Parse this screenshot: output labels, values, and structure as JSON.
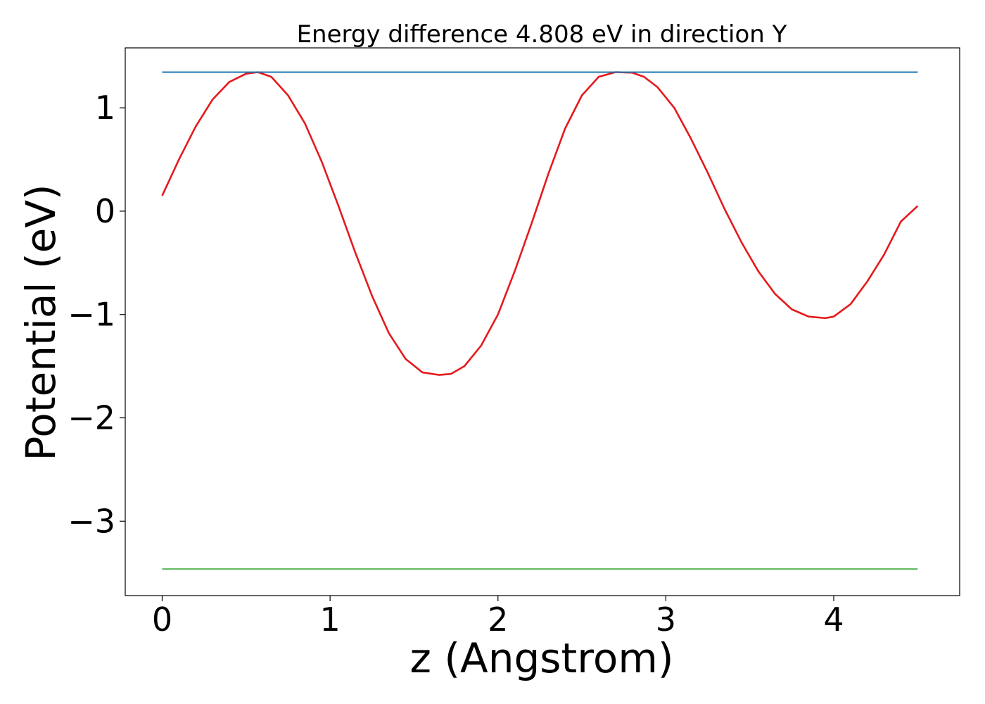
{
  "chart_data": {
    "type": "line",
    "title": "Energy difference 4.808 eV in direction Y",
    "xlabel": "z (Angstrom)",
    "ylabel": "Potential (eV)",
    "xlim": [
      -0.22,
      4.75
    ],
    "ylim": [
      -3.72,
      1.58
    ],
    "xticks": [
      0,
      1,
      2,
      3,
      4
    ],
    "xtick_labels": [
      "0",
      "1",
      "2",
      "3",
      "4"
    ],
    "yticks": [
      1,
      0,
      -1,
      -2,
      -3
    ],
    "ytick_labels": [
      "1",
      "0",
      "−1",
      "−2",
      "−3"
    ],
    "grid": false,
    "series": [
      {
        "color": "#e41a1c",
        "x": [
          0.0,
          0.1,
          0.2,
          0.3,
          0.4,
          0.5,
          0.57,
          0.65,
          0.75,
          0.85,
          0.95,
          1.05,
          1.15,
          1.25,
          1.35,
          1.45,
          1.55,
          1.65,
          1.72,
          1.8,
          1.9,
          2.0,
          2.1,
          2.2,
          2.3,
          2.4,
          2.5,
          2.6,
          2.7,
          2.8,
          2.87,
          2.95,
          3.05,
          3.15,
          3.25,
          3.35,
          3.45,
          3.55,
          3.65,
          3.75,
          3.85,
          3.95,
          4.0,
          4.1,
          4.2,
          4.3,
          4.4,
          4.5
        ],
        "y": [
          0.15,
          0.5,
          0.82,
          1.08,
          1.25,
          1.33,
          1.345,
          1.3,
          1.12,
          0.85,
          0.48,
          0.05,
          -0.4,
          -0.82,
          -1.18,
          -1.43,
          -1.56,
          -1.585,
          -1.575,
          -1.5,
          -1.3,
          -1.0,
          -0.58,
          -0.12,
          0.36,
          0.8,
          1.12,
          1.3,
          1.345,
          1.34,
          1.3,
          1.2,
          1.0,
          0.7,
          0.37,
          0.02,
          -0.3,
          -0.58,
          -0.8,
          -0.95,
          -1.02,
          -1.035,
          -1.02,
          -0.9,
          -0.68,
          -0.42,
          -0.1,
          0.05
        ],
        "points_override": false
      },
      {
        "color": "#1f77b4",
        "x": [
          0.0,
          4.5
        ],
        "y": [
          1.345,
          1.345
        ]
      },
      {
        "color": "#4daf4a",
        "x": [
          0.0,
          4.5
        ],
        "y": [
          -3.463,
          -3.463
        ]
      }
    ]
  }
}
